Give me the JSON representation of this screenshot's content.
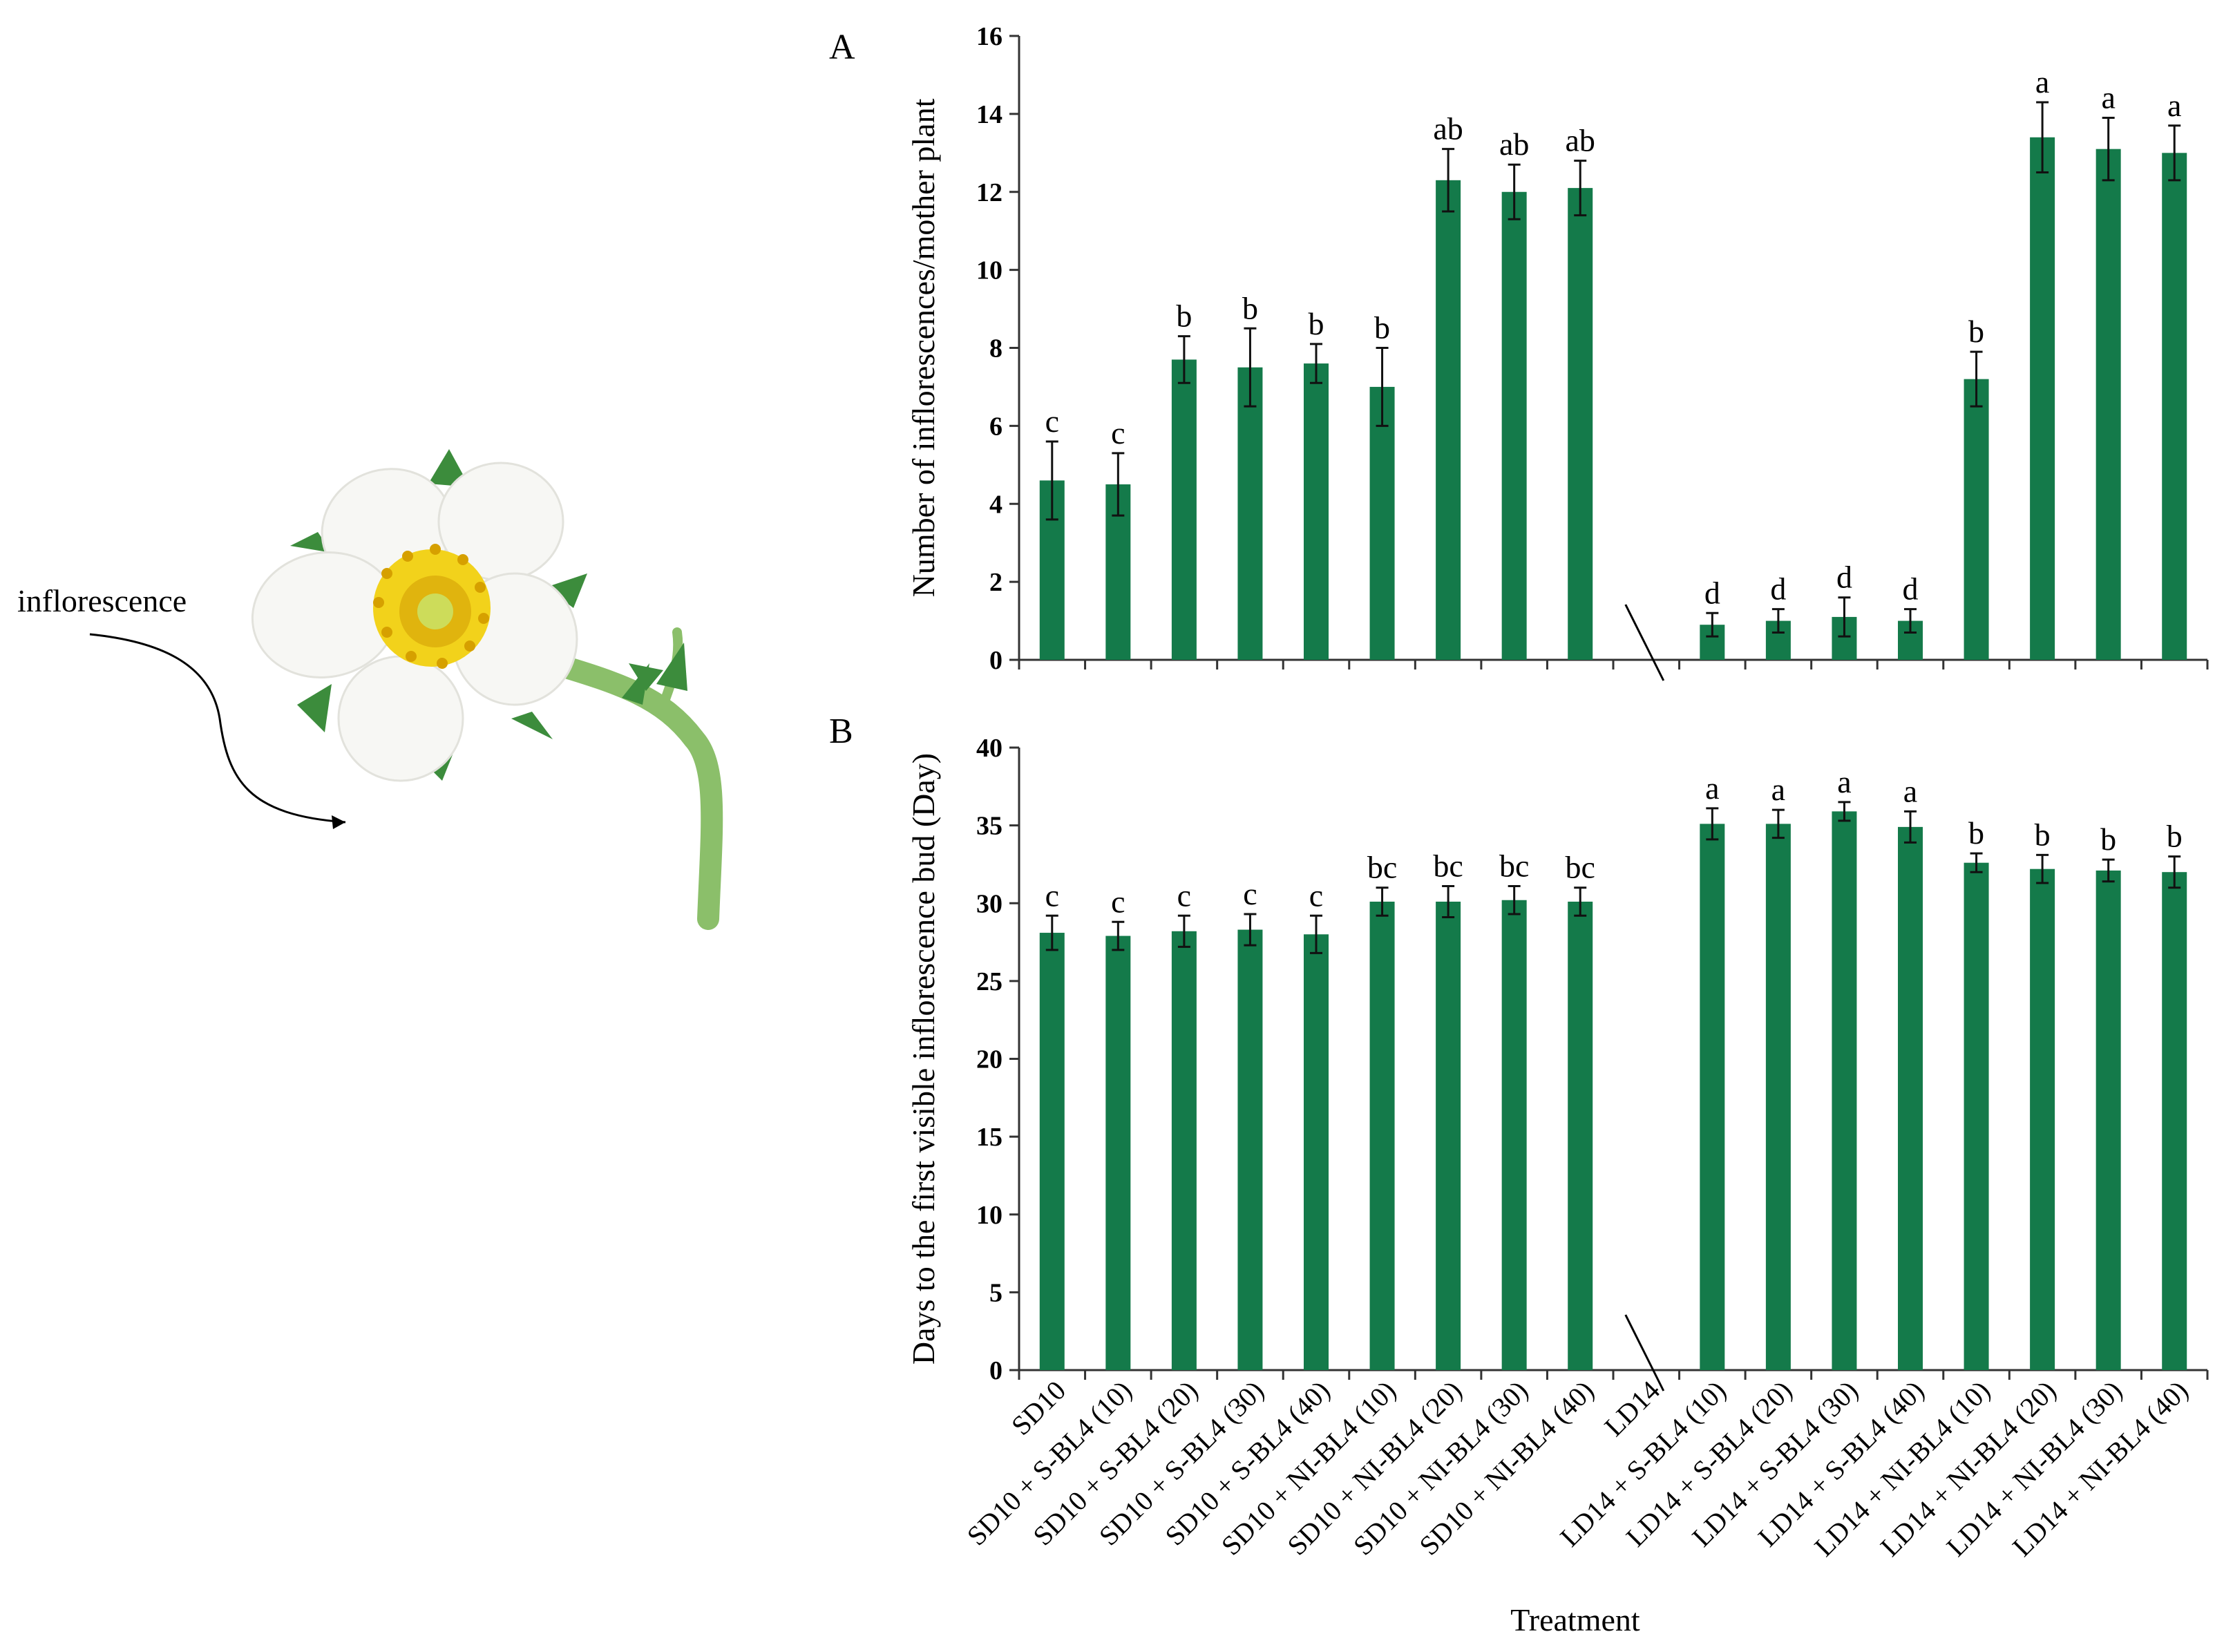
{
  "illustration": {
    "label": "inflorescence",
    "icon": "strawberry-flower-photo"
  },
  "colors": {
    "bar": "#147a4a",
    "axis": "#333333",
    "text": "#000000"
  },
  "chart_data": [
    {
      "panel": "A",
      "type": "bar",
      "title": "",
      "ylabel": "Number of inflorescences/mother plant",
      "xlabel": "",
      "ylim": [
        0,
        16
      ],
      "yticks": [
        0,
        2,
        4,
        6,
        8,
        10,
        12,
        14,
        16
      ],
      "categories": [
        "SD10",
        "SD10 + S-BL4 (10)",
        "SD10 + S-BL4 (20)",
        "SD10 + S-BL4 (30)",
        "SD10 + S-BL4 (40)",
        "SD10 + NI-BL4 (10)",
        "SD10 + NI-BL4 (20)",
        "SD10 + NI-BL4 (30)",
        "SD10 + NI-BL4 (40)",
        "LD14",
        "LD14 + S-BL4 (10)",
        "LD14 + S-BL4 (20)",
        "LD14 + S-BL4 (30)",
        "LD14 + S-BL4 (40)",
        "LD14 + NI-BL4 (10)",
        "LD14 + NI-BL4 (20)",
        "LD14 + NI-BL4 (30)",
        "LD14 + NI-BL4 (40)"
      ],
      "values": [
        4.6,
        4.5,
        7.7,
        7.5,
        7.6,
        7.0,
        12.3,
        12.0,
        12.1,
        null,
        0.9,
        1.0,
        1.1,
        1.0,
        7.2,
        13.4,
        13.1,
        13.0
      ],
      "errors": [
        1.0,
        0.8,
        0.6,
        1.0,
        0.5,
        1.0,
        0.8,
        0.7,
        0.7,
        null,
        0.3,
        0.3,
        0.5,
        0.3,
        0.7,
        0.9,
        0.8,
        0.7
      ],
      "significance": [
        "c",
        "c",
        "b",
        "b",
        "b",
        "b",
        "ab",
        "ab",
        "ab",
        "",
        "d",
        "d",
        "d",
        "d",
        "b",
        "a",
        "a",
        "a"
      ],
      "axis_break_after": "SD10 + NI-BL4 (40)"
    },
    {
      "panel": "B",
      "type": "bar",
      "title": "",
      "ylabel": "Days to the first visible inflorescence bud (Day)",
      "xlabel": "Treatment",
      "ylim": [
        0,
        40
      ],
      "yticks": [
        0,
        5,
        10,
        15,
        20,
        25,
        30,
        35,
        40
      ],
      "categories": [
        "SD10",
        "SD10 + S-BL4 (10)",
        "SD10 + S-BL4 (20)",
        "SD10 + S-BL4 (30)",
        "SD10 + S-BL4 (40)",
        "SD10 + NI-BL4 (10)",
        "SD10 + NI-BL4 (20)",
        "SD10 + NI-BL4 (30)",
        "SD10 + NI-BL4 (40)",
        "LD14",
        "LD14 + S-BL4 (10)",
        "LD14 + S-BL4 (20)",
        "LD14 + S-BL4 (30)",
        "LD14 + S-BL4 (40)",
        "LD14 + NI-BL4 (10)",
        "LD14 + NI-BL4 (20)",
        "LD14 + NI-BL4 (30)",
        "LD14 + NI-BL4 (40)"
      ],
      "values": [
        28.1,
        27.9,
        28.2,
        28.3,
        28.0,
        30.1,
        30.1,
        30.2,
        30.1,
        null,
        35.1,
        35.1,
        35.9,
        34.9,
        32.6,
        32.2,
        32.1,
        32.0
      ],
      "errors": [
        1.1,
        0.9,
        1.0,
        1.0,
        1.2,
        0.9,
        1.0,
        0.9,
        0.9,
        null,
        1.0,
        0.9,
        0.6,
        1.0,
        0.6,
        0.9,
        0.7,
        1.0
      ],
      "significance": [
        "c",
        "c",
        "c",
        "c",
        "c",
        "bc",
        "bc",
        "bc",
        "bc",
        "",
        "a",
        "a",
        "a",
        "a",
        "b",
        "b",
        "b",
        "b"
      ],
      "axis_break_after": "SD10 + NI-BL4 (40)"
    }
  ]
}
